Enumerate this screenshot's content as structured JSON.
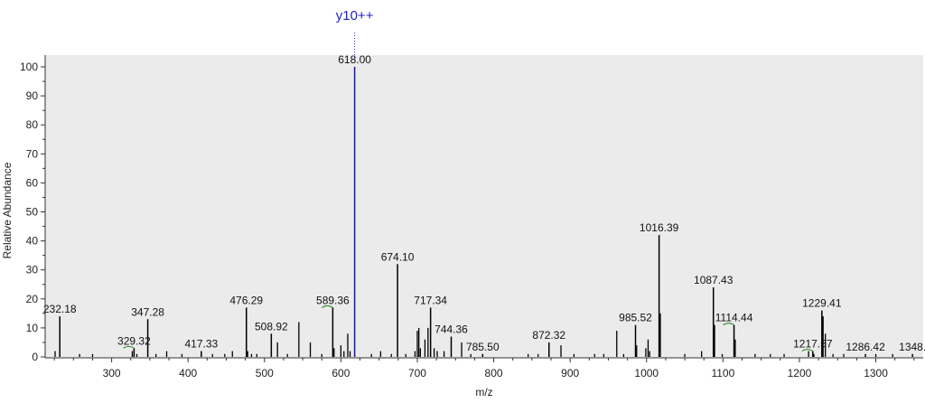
{
  "chart_data": {
    "type": "bar",
    "title": "",
    "xlabel": "m/z",
    "ylabel": "Relative Abundance",
    "xlim": [
      213,
      1362
    ],
    "ylim": [
      0,
      100
    ],
    "x_ticks": [
      300,
      400,
      500,
      600,
      700,
      800,
      900,
      1000,
      1100,
      1200,
      1300
    ],
    "y_ticks": [
      0,
      10,
      20,
      30,
      40,
      50,
      60,
      70,
      80,
      90,
      100
    ],
    "grid": false,
    "colors": {
      "background": "#ebebeb",
      "peak": "#000000",
      "annotated_peak": "#1a1a8c",
      "annotation": "#2323c8",
      "marker": "#2e8b2e"
    },
    "labeled_peaks": [
      {
        "mz": 232.18,
        "label": "232.18",
        "intensity": 14
      },
      {
        "mz": 329.32,
        "label": "329.32",
        "intensity": 3
      },
      {
        "mz": 347.28,
        "label": "347.28",
        "intensity": 13
      },
      {
        "mz": 417.33,
        "label": "417.33",
        "intensity": 2
      },
      {
        "mz": 476.29,
        "label": "476.29",
        "intensity": 17
      },
      {
        "mz": 508.92,
        "label": "508.92",
        "intensity": 8
      },
      {
        "mz": 589.36,
        "label": "589.36",
        "intensity": 17
      },
      {
        "mz": 618.0,
        "label": "618.00",
        "intensity": 100
      },
      {
        "mz": 674.1,
        "label": "674.10",
        "intensity": 32
      },
      {
        "mz": 717.34,
        "label": "717.34",
        "intensity": 17
      },
      {
        "mz": 744.36,
        "label": "744.36",
        "intensity": 7
      },
      {
        "mz": 785.5,
        "label": "785.50",
        "intensity": 1
      },
      {
        "mz": 872.32,
        "label": "872.32",
        "intensity": 5
      },
      {
        "mz": 985.52,
        "label": "985.52",
        "intensity": 11
      },
      {
        "mz": 1016.39,
        "label": "1016.39",
        "intensity": 42
      },
      {
        "mz": 1087.43,
        "label": "1087.43",
        "intensity": 24
      },
      {
        "mz": 1114.44,
        "label": "1114.44",
        "intensity": 11
      },
      {
        "mz": 1217.57,
        "label": "1217.57",
        "intensity": 2
      },
      {
        "mz": 1229.41,
        "label": "1229.41",
        "intensity": 16
      },
      {
        "mz": 1286.42,
        "label": "1286.42",
        "intensity": 1
      },
      {
        "mz": 1348,
        "label": "1348.",
        "intensity": 1
      }
    ],
    "other_peaks": [
      {
        "mz": 226,
        "intensity": 2
      },
      {
        "mz": 258,
        "intensity": 1
      },
      {
        "mz": 275,
        "intensity": 1
      },
      {
        "mz": 327,
        "intensity": 2
      },
      {
        "mz": 333,
        "intensity": 1
      },
      {
        "mz": 358,
        "intensity": 1
      },
      {
        "mz": 372,
        "intensity": 2
      },
      {
        "mz": 392,
        "intensity": 1
      },
      {
        "mz": 432,
        "intensity": 1
      },
      {
        "mz": 448,
        "intensity": 1
      },
      {
        "mz": 458,
        "intensity": 2
      },
      {
        "mz": 478,
        "intensity": 2
      },
      {
        "mz": 483,
        "intensity": 1
      },
      {
        "mz": 490,
        "intensity": 1
      },
      {
        "mz": 517,
        "intensity": 5
      },
      {
        "mz": 530,
        "intensity": 1
      },
      {
        "mz": 545,
        "intensity": 12
      },
      {
        "mz": 560,
        "intensity": 5
      },
      {
        "mz": 575,
        "intensity": 1
      },
      {
        "mz": 591,
        "intensity": 3
      },
      {
        "mz": 600,
        "intensity": 4
      },
      {
        "mz": 604,
        "intensity": 2
      },
      {
        "mz": 609,
        "intensity": 8
      },
      {
        "mz": 612,
        "intensity": 2
      },
      {
        "mz": 640,
        "intensity": 1
      },
      {
        "mz": 652,
        "intensity": 2
      },
      {
        "mz": 666,
        "intensity": 1
      },
      {
        "mz": 685,
        "intensity": 1
      },
      {
        "mz": 697,
        "intensity": 2
      },
      {
        "mz": 700,
        "intensity": 9
      },
      {
        "mz": 702,
        "intensity": 10
      },
      {
        "mz": 704,
        "intensity": 3
      },
      {
        "mz": 710,
        "intensity": 6
      },
      {
        "mz": 714,
        "intensity": 10
      },
      {
        "mz": 722,
        "intensity": 3
      },
      {
        "mz": 726,
        "intensity": 2
      },
      {
        "mz": 735,
        "intensity": 2
      },
      {
        "mz": 758,
        "intensity": 5
      },
      {
        "mz": 770,
        "intensity": 1
      },
      {
        "mz": 845,
        "intensity": 1
      },
      {
        "mz": 858,
        "intensity": 1
      },
      {
        "mz": 888,
        "intensity": 4
      },
      {
        "mz": 905,
        "intensity": 1
      },
      {
        "mz": 932,
        "intensity": 1
      },
      {
        "mz": 944,
        "intensity": 1
      },
      {
        "mz": 961,
        "intensity": 9
      },
      {
        "mz": 970,
        "intensity": 1
      },
      {
        "mz": 987,
        "intensity": 4
      },
      {
        "mz": 999,
        "intensity": 3
      },
      {
        "mz": 1002,
        "intensity": 6
      },
      {
        "mz": 1004,
        "intensity": 2
      },
      {
        "mz": 1018,
        "intensity": 15
      },
      {
        "mz": 1050,
        "intensity": 1
      },
      {
        "mz": 1072,
        "intensity": 2
      },
      {
        "mz": 1089,
        "intensity": 11
      },
      {
        "mz": 1099,
        "intensity": 1
      },
      {
        "mz": 1116,
        "intensity": 6
      },
      {
        "mz": 1142,
        "intensity": 1
      },
      {
        "mz": 1162,
        "intensity": 1
      },
      {
        "mz": 1180,
        "intensity": 1
      },
      {
        "mz": 1212,
        "intensity": 2
      },
      {
        "mz": 1219,
        "intensity": 1
      },
      {
        "mz": 1231,
        "intensity": 14
      },
      {
        "mz": 1234,
        "intensity": 8
      },
      {
        "mz": 1244,
        "intensity": 1
      },
      {
        "mz": 1258,
        "intensity": 1
      },
      {
        "mz": 1300,
        "intensity": 1
      },
      {
        "mz": 1322,
        "intensity": 1
      }
    ],
    "annotations": [
      {
        "label": "y10++",
        "mz": 618.0
      }
    ]
  }
}
